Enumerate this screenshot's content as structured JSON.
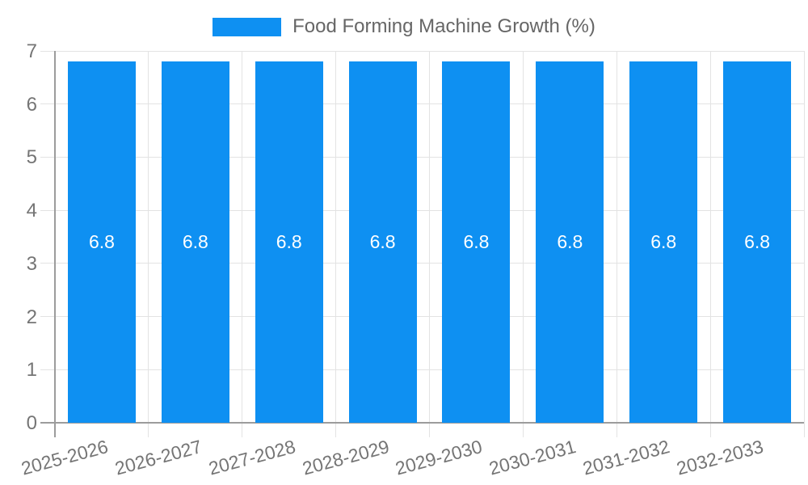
{
  "legend": {
    "label": "Food Forming Machine Growth (%)",
    "swatch_color": "#0e90f2"
  },
  "chart_data": {
    "type": "bar",
    "title": "Food Forming Machine Growth (%)",
    "categories": [
      "2025-2026",
      "2026-2027",
      "2027-2028",
      "2028-2029",
      "2029-2030",
      "2030-2031",
      "2031-2032",
      "2032-2033"
    ],
    "series": [
      {
        "name": "Food Forming Machine Growth (%)",
        "values": [
          6.8,
          6.8,
          6.8,
          6.8,
          6.8,
          6.8,
          6.8,
          6.8
        ]
      }
    ],
    "bar_value_labels": [
      "6.8",
      "6.8",
      "6.8",
      "6.8",
      "6.8",
      "6.8",
      "6.8",
      "6.8"
    ],
    "xlabel": "",
    "ylabel": "",
    "ylim": [
      0,
      7
    ],
    "yticks": [
      0,
      1,
      2,
      3,
      4,
      5,
      6,
      7
    ],
    "grid": true,
    "legend_position": "top",
    "colors": {
      "bar": "#0e90f2",
      "bar_label": "#ffffff",
      "grid": "#e3e3e3",
      "axis": "#9c9c9c",
      "tick_label": "#757575",
      "legend_text": "#666666"
    }
  }
}
